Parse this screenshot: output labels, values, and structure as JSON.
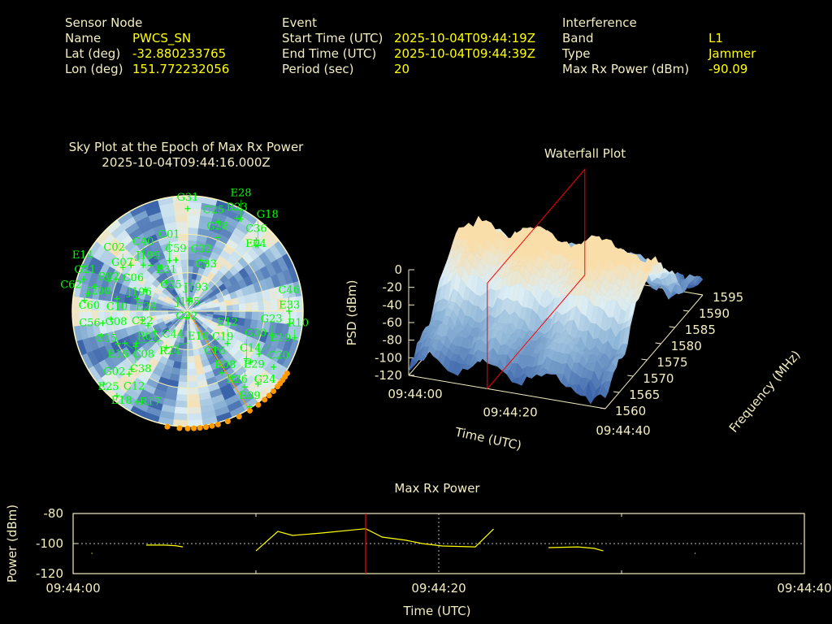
{
  "header": {
    "sensor": {
      "title": "Sensor Node",
      "name_label": "Name",
      "name": "PWCS_SN",
      "lat_label": "Lat (deg)",
      "lat": "-32.880233765",
      "lon_label": "Lon (deg)",
      "lon": "151.772232056"
    },
    "event": {
      "title": "Event",
      "start_label": "Start Time (UTC)",
      "start": "2025-10-04T09:44:19Z",
      "end_label": "End Time (UTC)",
      "end": "2025-10-04T09:44:39Z",
      "period_label": "Period (sec)",
      "period": "20"
    },
    "interference": {
      "title": "Interference",
      "band_label": "Band",
      "band": "L1",
      "type_label": "Type",
      "type": "Jammer",
      "power_label": "Max Rx Power (dBm)",
      "power": "-90.09"
    }
  },
  "colors": {
    "label": "#f3eec0",
    "value": "#ffff00",
    "sat": "#00ff00",
    "interference": "#ff9900",
    "marker": "#ff0000"
  },
  "chart_data": [
    {
      "type": "scatter",
      "name": "sky-plot",
      "title": "Sky Plot at the Epoch of Max Rx Power",
      "subtitle": "2025-10-04T09:44:16.000Z",
      "elevation_rings": [
        0,
        30,
        60
      ],
      "azimuth_spokes": [
        0,
        45,
        90,
        135,
        180,
        225,
        270,
        315
      ],
      "interference_bearing_az": 148,
      "interference_horizon_az": [
        122,
        124,
        126,
        128,
        130,
        133,
        136,
        139,
        143,
        148,
        154,
        160,
        165,
        168,
        171,
        174,
        177,
        180,
        184,
        190
      ],
      "satellites": [
        {
          "id": "G31",
          "az": 0,
          "el": 10
        },
        {
          "id": "R23",
          "az": 28,
          "el": 8
        },
        {
          "id": "E28",
          "az": 30,
          "el": 7
        },
        {
          "id": "C25",
          "az": 19,
          "el": 16
        },
        {
          "id": "G28",
          "az": 22,
          "el": 28
        },
        {
          "id": "C36",
          "az": 44,
          "el": 13
        },
        {
          "id": "E04",
          "az": 46,
          "el": 16
        },
        {
          "id": "G18",
          "az": 47,
          "el": 15
        },
        {
          "id": "C32",
          "az": 15,
          "el": 49
        },
        {
          "id": "C33",
          "az": 21,
          "el": 50
        },
        {
          "id": "C59",
          "az": 347,
          "el": 49
        },
        {
          "id": "C01",
          "az": 340,
          "el": 48
        },
        {
          "id": "J199",
          "az": 321,
          "el": 44
        },
        {
          "id": "E31",
          "az": 329,
          "el": 50
        },
        {
          "id": "C35",
          "az": 323,
          "el": 62
        },
        {
          "id": "J193",
          "az": 8,
          "el": 80
        },
        {
          "id": "J195",
          "az": 5,
          "el": 82
        },
        {
          "id": "G32",
          "az": 190,
          "el": 85
        },
        {
          "id": "C40",
          "az": 316,
          "el": 40
        },
        {
          "id": "G07",
          "az": 309,
          "el": 33
        },
        {
          "id": "C02",
          "az": 304,
          "el": 29
        },
        {
          "id": "E14",
          "az": 293,
          "el": 1
        },
        {
          "id": "G21",
          "az": 287,
          "el": 5
        },
        {
          "id": "R02",
          "az": 291,
          "el": 24
        },
        {
          "id": "J200",
          "az": 285,
          "el": 15
        },
        {
          "id": "C06",
          "az": 294,
          "el": 29
        },
        {
          "id": "J196",
          "az": 297,
          "el": 53
        },
        {
          "id": "C62",
          "az": 280,
          "el": 11
        },
        {
          "id": "C60",
          "az": 276,
          "el": 9
        },
        {
          "id": "C10",
          "az": 280,
          "el": 34
        },
        {
          "id": "E24",
          "az": 284,
          "el": 49
        },
        {
          "id": "G08",
          "az": 264,
          "el": 30
        },
        {
          "id": "C56",
          "az": 262,
          "el": 23
        },
        {
          "id": "C22",
          "az": 259,
          "el": 54
        },
        {
          "id": "R01",
          "az": 250,
          "el": 57
        },
        {
          "id": "C15",
          "az": 254,
          "el": 20
        },
        {
          "id": "E16",
          "az": 245,
          "el": 30
        },
        {
          "id": "C08",
          "az": 243,
          "el": 35
        },
        {
          "id": "C44",
          "az": 238,
          "el": 43
        },
        {
          "id": "C38",
          "az": 236,
          "el": 41
        },
        {
          "id": "R24",
          "az": 238,
          "el": 60
        },
        {
          "id": "E10",
          "az": 210,
          "el": 57
        },
        {
          "id": "G02",
          "az": 224,
          "el": 27
        },
        {
          "id": "C12",
          "az": 223,
          "el": 23
        },
        {
          "id": "E25",
          "az": 229,
          "el": 3
        },
        {
          "id": "E18",
          "az": 220,
          "el": 4
        },
        {
          "id": "R17",
          "az": 209,
          "el": 9
        },
        {
          "id": "C19",
          "az": 143,
          "el": 54
        },
        {
          "id": "C16",
          "az": 145,
          "el": 53
        },
        {
          "id": "E12",
          "az": 129,
          "el": 50
        },
        {
          "id": "R08",
          "az": 151,
          "el": 35
        },
        {
          "id": "R26",
          "az": 146,
          "el": 28
        },
        {
          "id": "E29",
          "az": 143,
          "el": 16
        },
        {
          "id": "R09",
          "az": 147,
          "el": 1
        },
        {
          "id": "G24",
          "az": 136,
          "el": 11
        },
        {
          "id": "C20",
          "az": 123,
          "el": 10
        },
        {
          "id": "C14",
          "az": 129,
          "el": 27
        },
        {
          "id": "G30",
          "az": 129,
          "el": 31
        },
        {
          "id": "E19",
          "az": 121,
          "el": 25
        },
        {
          "id": "G23",
          "az": 106,
          "el": 22
        },
        {
          "id": "R10",
          "az": 104,
          "el": 4
        },
        {
          "id": "E33",
          "az": 97,
          "el": 10
        },
        {
          "id": "C46",
          "az": 90,
          "el": 11
        }
      ]
    },
    {
      "type": "surface",
      "name": "waterfall-plot",
      "title": "Waterfall Plot",
      "xlabel": "Time (UTC)",
      "ylabel": "Frequency (MHz)",
      "zlabel": "PSD (dBm)",
      "xticks": [
        "09:44:00",
        "09:44:20",
        "09:44:40"
      ],
      "xlim": [
        0,
        40
      ],
      "yticks": [
        "1560",
        "1565",
        "1570",
        "1575",
        "1580",
        "1585",
        "1590",
        "1595"
      ],
      "ylim": [
        1560,
        1595
      ],
      "zticks": [
        "0",
        "-20",
        "-40",
        "-60",
        "-80",
        "-100",
        "-120"
      ],
      "zlim": [
        -120,
        0
      ],
      "peak_psd_dbm": -15,
      "floor_psd_dbm": -95,
      "center_freq_mhz": 1577,
      "marker_time_s": 16
    },
    {
      "type": "line",
      "name": "max-rx-power",
      "title": "Max Rx Power",
      "xlabel": "Time (UTC)",
      "ylabel": "Power (dBm)",
      "xticks": [
        "09:44:00",
        "09:44:20",
        "09:44:40"
      ],
      "xlim": [
        0,
        40
      ],
      "yticks": [
        "-80",
        "-100",
        "-120"
      ],
      "ylim": [
        -120,
        -80
      ],
      "grid_x": [
        20
      ],
      "grid_y": [
        -100
      ],
      "marker_time_s": 16,
      "segments": [
        [
          [
            1.0,
            -106.5
          ],
          [
            1.05,
            -106.5
          ]
        ],
        [
          [
            4.0,
            -101.0
          ],
          [
            5.0,
            -101.0
          ],
          [
            5.6,
            -101.4
          ],
          [
            6.0,
            -102.2
          ]
        ],
        [
          [
            10.0,
            -104.9
          ],
          [
            11.2,
            -91.9
          ],
          [
            12.0,
            -94.6
          ],
          [
            13.6,
            -93.0
          ],
          [
            16.0,
            -90.09
          ],
          [
            16.9,
            -95.7
          ],
          [
            18.2,
            -97.8
          ],
          [
            19.1,
            -100.0
          ],
          [
            20.2,
            -101.6
          ],
          [
            22.0,
            -102.2
          ],
          [
            23.0,
            -90.3
          ]
        ],
        [
          [
            26.0,
            -102.7
          ],
          [
            27.6,
            -102.2
          ],
          [
            28.5,
            -103.2
          ],
          [
            29.0,
            -104.9
          ]
        ],
        [
          [
            34.0,
            -106.5
          ],
          [
            34.05,
            -106.5
          ]
        ]
      ]
    }
  ]
}
